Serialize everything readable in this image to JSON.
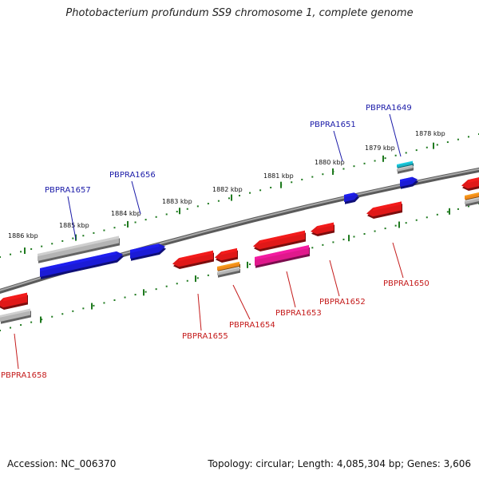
{
  "title": "Photobacterium profundum SS9 chromosome 1, complete genome",
  "footer": {
    "accession": "Accession: NC_006370",
    "summary": "Topology: circular; Length: 4,085,304 bp; Genes: 3,606"
  },
  "colors": {
    "backbone": "#7a7a7a",
    "tick": "#1f7a1f",
    "label_forward": "#1a1aa8",
    "label_reverse": "#c41a1a",
    "gene_blue": "#1b1bd6",
    "gene_red": "#e01818",
    "gene_magenta": "#e0188c",
    "gene_gray": "#b4b4b4",
    "gene_orange": "#f08a1a",
    "gene_cyan": "#19b6c8"
  },
  "scale": {
    "labels": [
      "1886 kbp",
      "1885 kbp",
      "1884 kbp",
      "1883 kbp",
      "1882 kbp",
      "1881 kbp",
      "1880 kbp",
      "1879 kbp",
      "1878 kbp"
    ]
  },
  "genes": {
    "forward": [
      "PBPRA1657",
      "PBPRA1656",
      "PBPRA1651",
      "PBPRA1649"
    ],
    "reverse": [
      "PBPRA1658",
      "PBPRA1655",
      "PBPRA1654",
      "PBPRA1653",
      "PBPRA1652",
      "PBPRA1650"
    ]
  }
}
